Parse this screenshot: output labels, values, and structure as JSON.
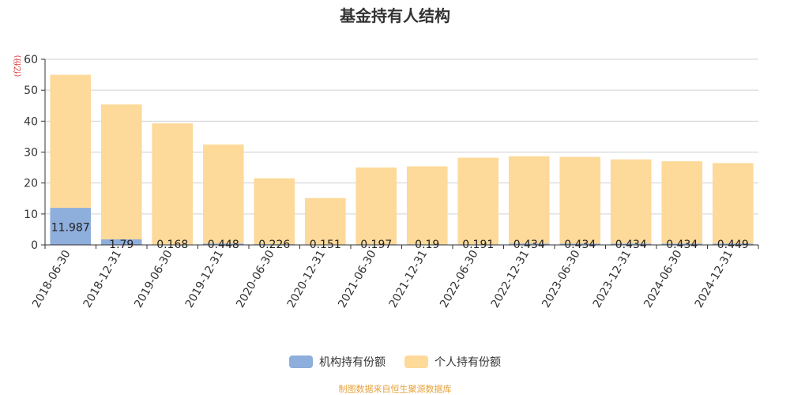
{
  "chart_data": {
    "type": "bar",
    "stacked": true,
    "title": "基金持有人结构",
    "ylabel": "(亿份)",
    "ylim": [
      0,
      60
    ],
    "yticks": [
      0,
      10,
      20,
      30,
      40,
      50,
      60
    ],
    "grid": true,
    "legend_position": "bottom",
    "categories": [
      "2018-06-30",
      "2018-12-31",
      "2019-06-30",
      "2019-12-31",
      "2020-06-30",
      "2020-12-31",
      "2021-06-30",
      "2021-12-31",
      "2022-06-30",
      "2022-12-31",
      "2023-06-30",
      "2023-12-31",
      "2024-06-30",
      "2024-12-31"
    ],
    "series": [
      {
        "name": "机构持有份额",
        "color": "#8eaedc",
        "values": [
          11.987,
          1.79,
          0.168,
          0.448,
          0.226,
          0.151,
          0.197,
          0.19,
          0.191,
          0.434,
          0.434,
          0.434,
          0.434,
          0.449
        ],
        "labels": [
          "11.987",
          "1.79",
          "0.168",
          "0.448",
          "0.226",
          "0.151",
          "0.197",
          "0.19",
          "0.191",
          "0.434",
          "0.434",
          "0.434",
          "0.434",
          "0.449"
        ]
      },
      {
        "name": "个人持有份额",
        "color": "#fdd99a",
        "values": [
          43.0,
          43.6,
          39.1,
          32.0,
          21.3,
          15.0,
          24.8,
          25.2,
          28.0,
          28.2,
          28.0,
          27.2,
          26.6,
          26.0
        ]
      }
    ],
    "source": "制图数据来自恒生聚源数据库"
  }
}
